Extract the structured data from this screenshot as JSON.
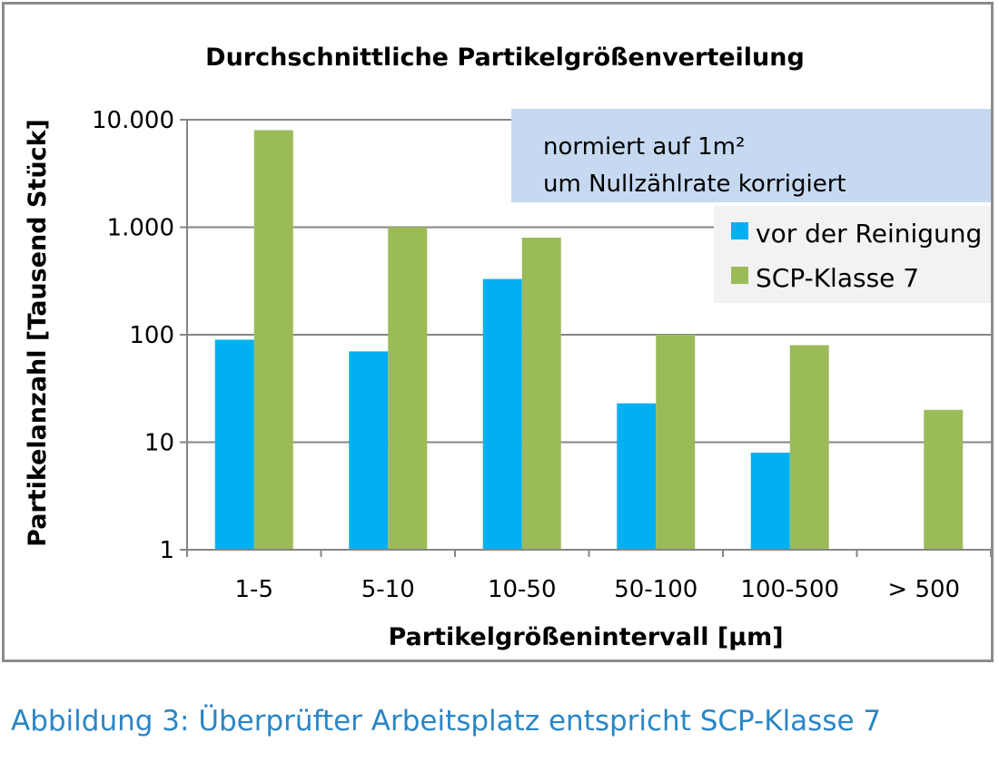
{
  "caption": "Abbildung 3:  Überprüfter Arbeitsplatz entspricht SCP-Klasse 7",
  "chart_data": {
    "type": "bar",
    "title": "Durchschnittliche Partikelgrößenverteilung",
    "xlabel": "Partikelgrößenintervall [µm]",
    "ylabel": "Partikelanzahl [Tausend Stück]",
    "yscale": "log",
    "ylim": [
      1,
      10000
    ],
    "yticks": [
      1,
      10,
      100,
      1000,
      10000
    ],
    "ytick_labels": [
      "1",
      "10",
      "100",
      "1.000",
      "10.000"
    ],
    "grid": true,
    "legend_position": "top-right",
    "categories": [
      "1-5",
      "5-10",
      "10-50",
      "50-100",
      "100-500",
      "> 500"
    ],
    "series": [
      {
        "name": "vor der Reinigung",
        "color": "#00b0f0",
        "values": [
          90,
          70,
          330,
          23,
          8,
          null
        ]
      },
      {
        "name": "SCP-Klasse 7",
        "color": "#9bbb59",
        "values": [
          8000,
          1000,
          800,
          100,
          80,
          20
        ]
      }
    ],
    "annotation": {
      "lines": [
        "normiert auf  1m²",
        "um Nullzählrate korrigiert"
      ],
      "background": "#c6d9f1"
    }
  }
}
